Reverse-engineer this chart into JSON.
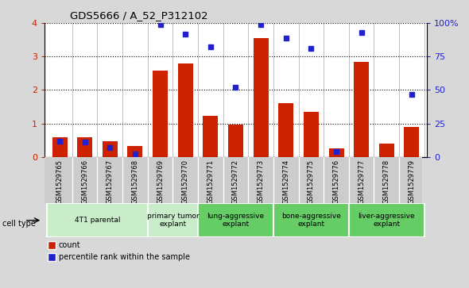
{
  "title": "GDS5666 / A_52_P312102",
  "samples": [
    "GSM1529765",
    "GSM1529766",
    "GSM1529767",
    "GSM1529768",
    "GSM1529769",
    "GSM1529770",
    "GSM1529771",
    "GSM1529772",
    "GSM1529773",
    "GSM1529774",
    "GSM1529775",
    "GSM1529776",
    "GSM1529777",
    "GSM1529778",
    "GSM1529779"
  ],
  "counts": [
    0.6,
    0.58,
    0.47,
    0.33,
    2.58,
    2.8,
    1.23,
    0.97,
    3.55,
    1.6,
    1.35,
    0.25,
    2.85,
    0.4,
    0.9
  ],
  "percentiles": [
    12,
    11,
    7,
    2,
    99,
    92,
    82,
    52,
    99,
    89,
    81,
    4,
    93,
    null,
    47
  ],
  "cell_types": [
    {
      "label": "4T1 parental",
      "start": 0,
      "end": 4,
      "color": "#c8edc8"
    },
    {
      "label": "primary tumor\nexplant",
      "start": 4,
      "end": 6,
      "color": "#c8edc8"
    },
    {
      "label": "lung-aggressive\nexplant",
      "start": 6,
      "end": 9,
      "color": "#66cc66"
    },
    {
      "label": "bone-aggressive\nexplant",
      "start": 9,
      "end": 12,
      "color": "#66cc66"
    },
    {
      "label": "liver-aggressive\nexplant",
      "start": 12,
      "end": 15,
      "color": "#66cc66"
    }
  ],
  "bar_color": "#cc2200",
  "dot_color": "#2222cc",
  "left_ylim": [
    0,
    4
  ],
  "right_ylim": [
    0,
    100
  ],
  "left_yticks": [
    0,
    1,
    2,
    3,
    4
  ],
  "right_yticks": [
    0,
    25,
    50,
    75,
    100
  ],
  "right_yticklabels": [
    "0",
    "25",
    "50",
    "75",
    "100%"
  ],
  "bg_color": "#d8d8d8",
  "plot_bg": "#ffffff",
  "label_bg": "#cccccc",
  "cell_type_row_color_1": "#c8edc8",
  "cell_type_row_color_2": "#66cc66"
}
